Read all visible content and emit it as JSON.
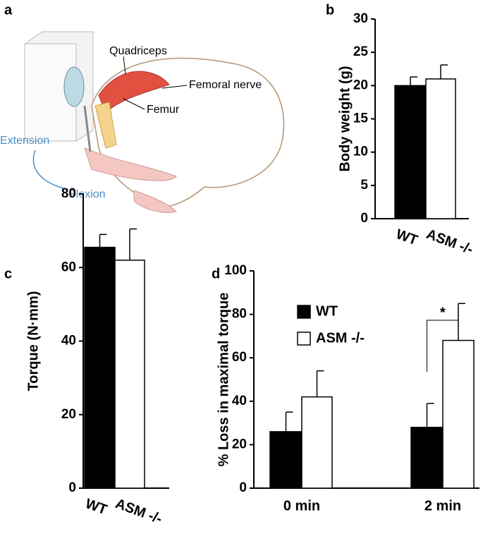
{
  "illustration": {
    "panel": "a",
    "labels": [
      "Quadriceps",
      "Femoral nerve",
      "Femur",
      "Extension",
      "Flexion"
    ]
  },
  "chart_data": [
    {
      "panel": "b",
      "type": "bar",
      "ylabel": "Body weight (g)",
      "categories": [
        "WT",
        "ASM -/-"
      ],
      "values": [
        20,
        21
      ],
      "errors": [
        1.3,
        2.1
      ],
      "colors": [
        "#000000",
        "#ffffff"
      ],
      "ylim": [
        0,
        30
      ],
      "yticks": [
        0,
        5,
        10,
        15,
        20,
        25,
        30
      ]
    },
    {
      "panel": "c",
      "type": "bar",
      "ylabel": "Torque (N·mm)",
      "categories": [
        "WT",
        "ASM -/-"
      ],
      "values": [
        65.5,
        62
      ],
      "errors": [
        3.5,
        8.5
      ],
      "colors": [
        "#000000",
        "#ffffff"
      ],
      "ylim": [
        0,
        80
      ],
      "yticks": [
        0,
        20,
        40,
        60,
        80
      ]
    },
    {
      "panel": "d",
      "type": "grouped_bar",
      "ylabel": "% Loss in maximal torque",
      "categories": [
        "0 min",
        "2 min"
      ],
      "series": [
        {
          "name": "WT",
          "color": "#000000",
          "values": [
            26,
            28
          ],
          "errors": [
            9,
            11
          ]
        },
        {
          "name": "ASM -/-",
          "color": "#ffffff",
          "values": [
            42,
            68
          ],
          "errors": [
            12,
            17
          ]
        }
      ],
      "ylim": [
        0,
        100
      ],
      "yticks": [
        0,
        20,
        40,
        60,
        80,
        100
      ],
      "annotation": "*"
    }
  ]
}
